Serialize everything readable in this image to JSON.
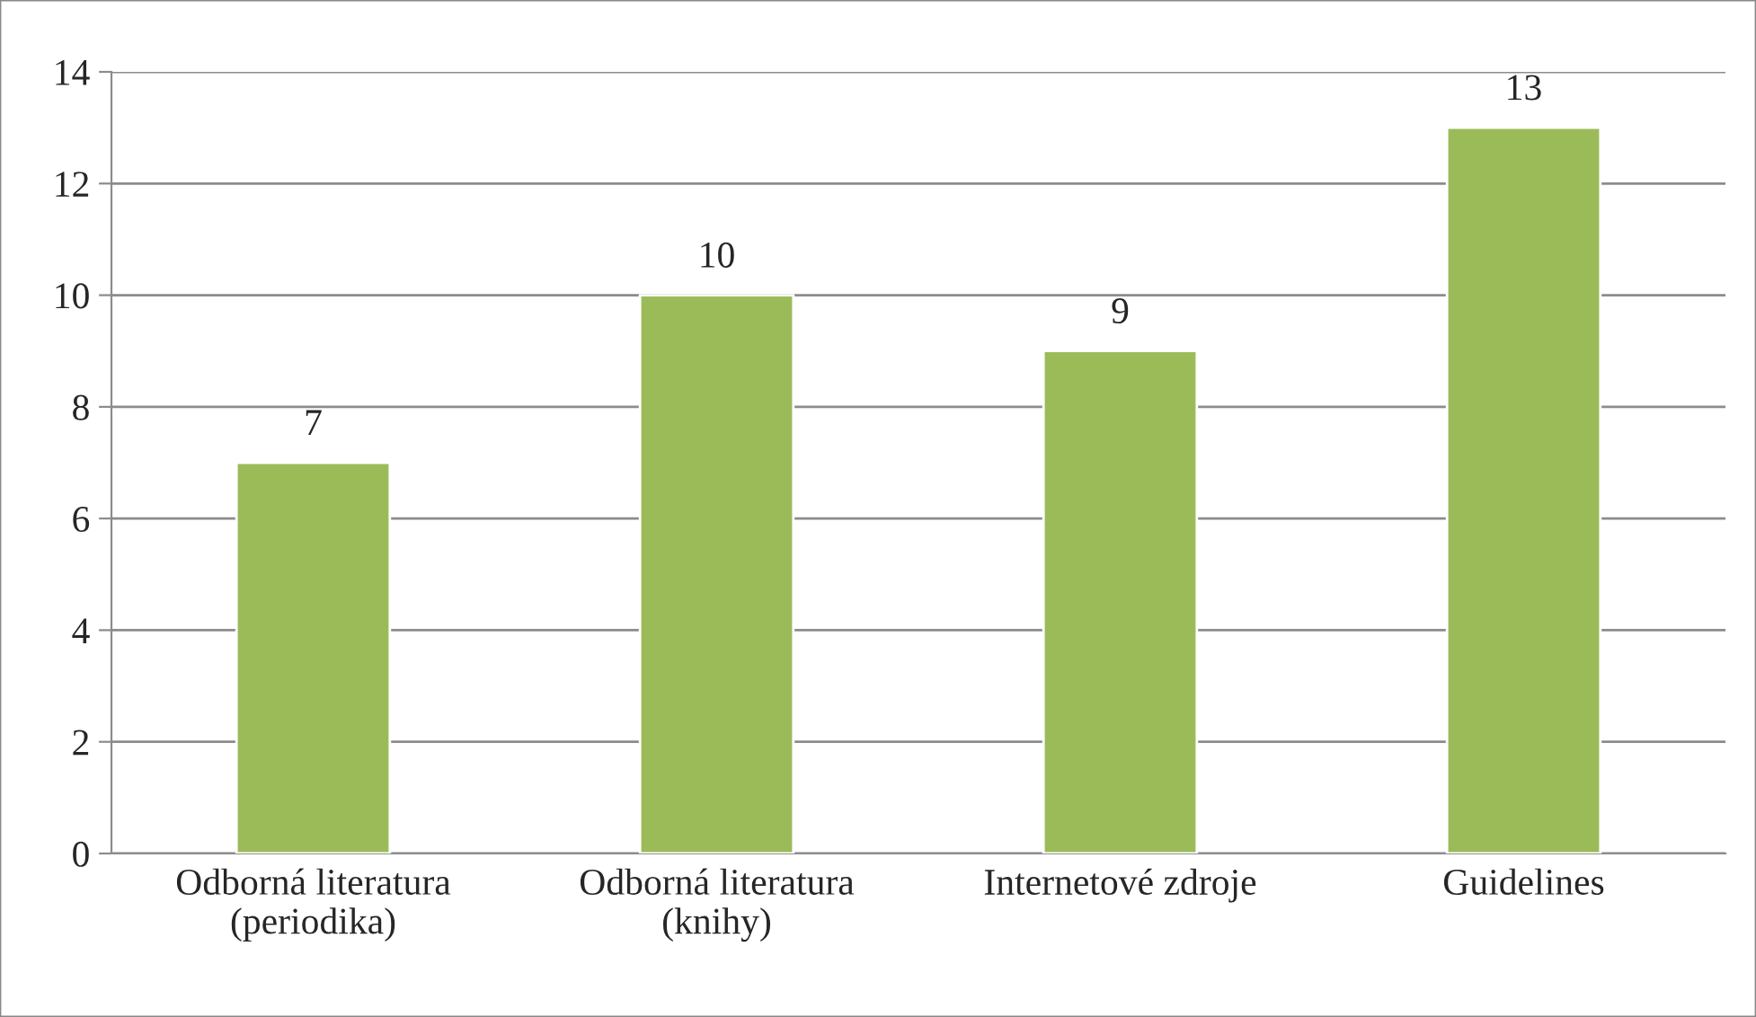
{
  "chart_data": {
    "type": "bar",
    "categories": [
      "Odborná literatura\n(periodika)",
      "Odborná literatura\n(knihy)",
      "Internetové zdroje",
      "Guidelines"
    ],
    "values": [
      7,
      10,
      9,
      13
    ],
    "color": "#9bbb59",
    "ylim": [
      0,
      14
    ],
    "yticks": [
      0,
      2,
      4,
      6,
      8,
      10,
      12,
      14
    ],
    "grid": "y",
    "data_labels": true,
    "legend": false
  }
}
